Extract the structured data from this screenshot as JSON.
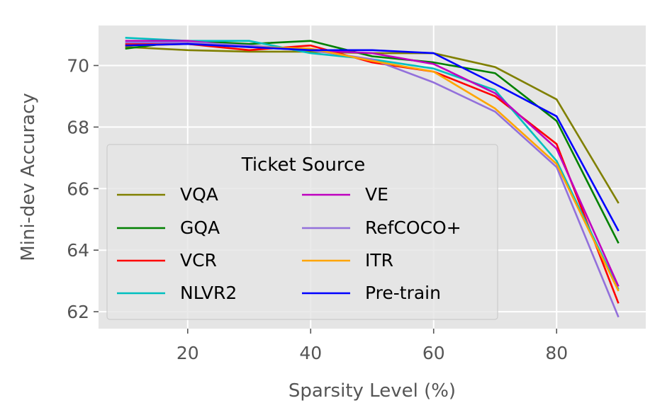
{
  "chart_data": {
    "type": "line",
    "title": "",
    "xlabel": "Sparsity Level (%)",
    "ylabel": "Mini-dev Accuracy",
    "x": [
      10,
      20,
      30,
      40,
      50,
      60,
      70,
      80,
      90
    ],
    "xlim": [
      5.5,
      94.5
    ],
    "ylim": [
      61.45,
      71.3
    ],
    "xticks": [
      20,
      40,
      60,
      80
    ],
    "yticks": [
      62,
      64,
      66,
      68,
      70
    ],
    "grid": true,
    "legend_title": "Ticket Source",
    "legend_position": "lower-left",
    "series": [
      {
        "name": "VQA",
        "color": "#808000",
        "values": [
          70.6,
          70.5,
          70.45,
          70.45,
          70.4,
          70.4,
          69.95,
          68.9,
          65.55
        ]
      },
      {
        "name": "GQA",
        "color": "#008000",
        "values": [
          70.55,
          70.8,
          70.7,
          70.8,
          70.3,
          70.1,
          69.75,
          68.2,
          64.25
        ]
      },
      {
        "name": "VCR",
        "color": "#ff0000",
        "values": [
          70.7,
          70.7,
          70.5,
          70.65,
          70.1,
          69.8,
          69.0,
          67.45,
          62.3
        ]
      },
      {
        "name": "NLVR2",
        "color": "#00bfbf",
        "values": [
          70.9,
          70.8,
          70.8,
          70.4,
          70.2,
          69.9,
          69.2,
          66.9,
          62.75
        ]
      },
      {
        "name": "VE",
        "color": "#bf00bf",
        "values": [
          70.8,
          70.8,
          70.6,
          70.5,
          70.4,
          70.05,
          69.1,
          67.3,
          62.85
        ]
      },
      {
        "name": "RefCOCO+",
        "color": "#9370db",
        "values": [
          70.75,
          70.75,
          70.65,
          70.5,
          70.2,
          69.45,
          68.5,
          66.7,
          61.85
        ]
      },
      {
        "name": "ITR",
        "color": "#ffa500",
        "values": [
          70.65,
          70.7,
          70.6,
          70.55,
          70.15,
          69.8,
          68.6,
          66.8,
          62.7
        ]
      },
      {
        "name": "Pre-train",
        "color": "#0000ff",
        "values": [
          70.65,
          70.7,
          70.6,
          70.5,
          70.5,
          70.4,
          69.4,
          68.35,
          64.65
        ]
      }
    ]
  }
}
